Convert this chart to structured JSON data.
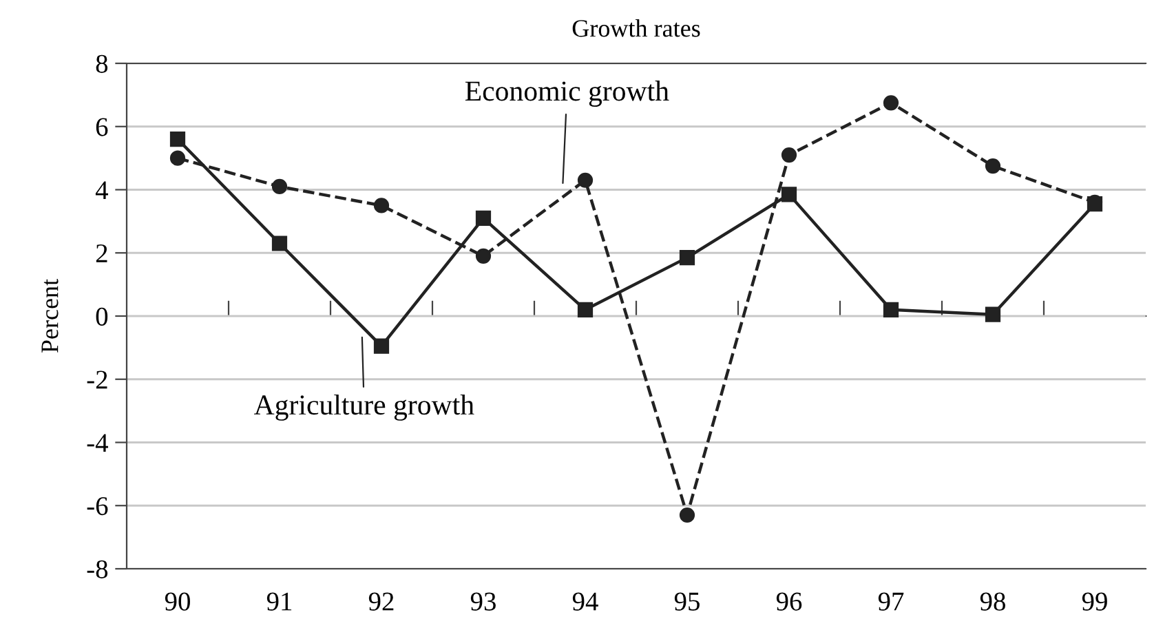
{
  "chart_data": {
    "type": "line",
    "title": "Growth rates",
    "ylabel": "Percent",
    "categories": [
      "90",
      "91",
      "92",
      "93",
      "94",
      "95",
      "96",
      "97",
      "98",
      "99"
    ],
    "series": [
      {
        "color": "#222222",
        "line_style": "dashed",
        "marker": "circle",
        "values": [
          5.0,
          4.1,
          3.5,
          1.9,
          4.3,
          -6.3,
          5.1,
          6.75,
          4.75,
          3.6
        ]
      },
      {
        "color": "#222222",
        "line_style": "solid",
        "marker": "square",
        "values": [
          5.6,
          2.3,
          -0.95,
          3.1,
          0.2,
          1.85,
          3.85,
          0.2,
          0.05,
          3.55
        ]
      }
    ],
    "ylim": [
      -8,
      8
    ],
    "yticks": [
      -8,
      -6,
      -4,
      -2,
      0,
      2,
      4,
      6,
      8
    ],
    "grid": "y",
    "legend": false,
    "annotations": [
      "Economic growth",
      "Agriculture growth"
    ]
  }
}
